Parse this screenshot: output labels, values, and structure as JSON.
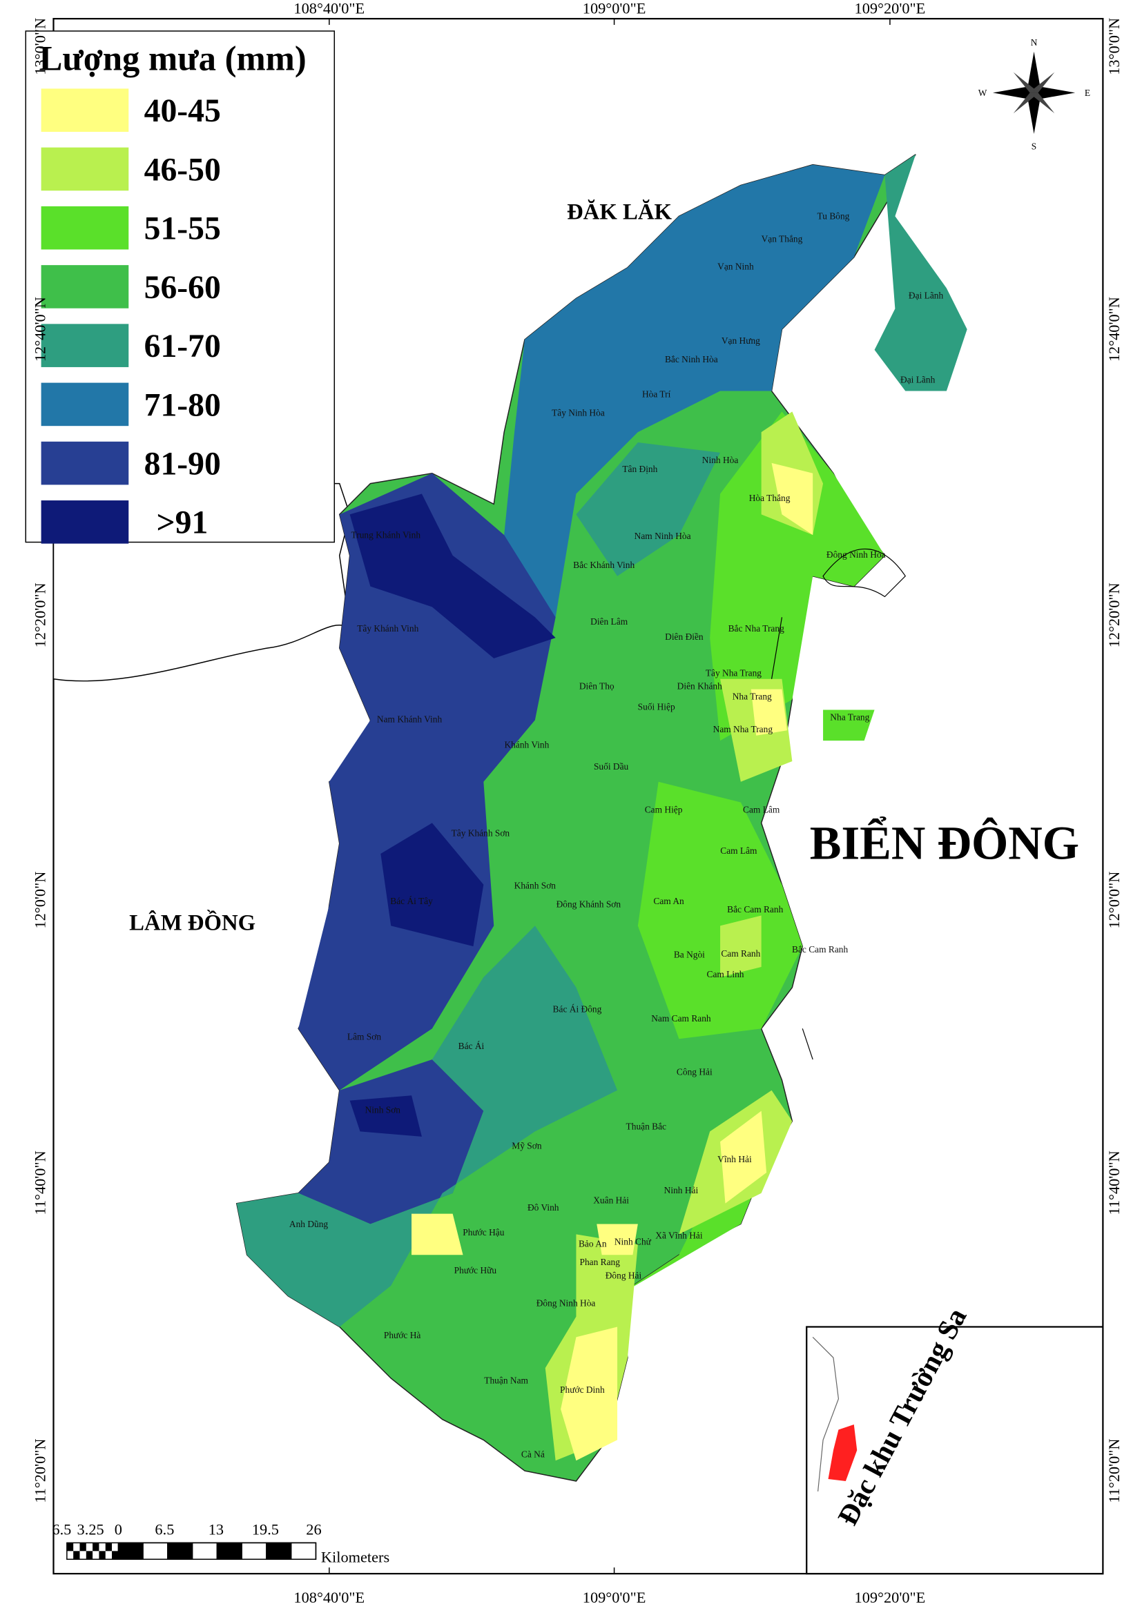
{
  "legend": {
    "title": "Lượng mưa (mm)",
    "items": [
      {
        "label": "40-45",
        "color": "#ffff80"
      },
      {
        "label": "46-50",
        "color": "#b9f04f"
      },
      {
        "label": "51-55",
        "color": "#5ae02a"
      },
      {
        "label": "56-60",
        "color": "#3fbf4a"
      },
      {
        "label": "61-70",
        "color": "#2e9e80"
      },
      {
        "label": "71-80",
        "color": "#2277a8"
      },
      {
        "label": "81-90",
        "color": "#273f93"
      },
      {
        "label": ">91",
        "color": "#0e1a78"
      }
    ]
  },
  "regions": {
    "north": "ĐĂK LĂK",
    "west": "LÂM ĐỒNG",
    "sea": "BIỂN ĐÔNG"
  },
  "communes": [
    "Tu Bông",
    "Vạn Thắng",
    "Vạn Ninh",
    "Đại Lãnh",
    "Vạn Hưng",
    "Đại Lãnh",
    "Bắc Ninh Hòa",
    "Hòa Trí",
    "Tây Ninh Hòa",
    "Tân Định",
    "Ninh Hòa",
    "Hòa Thắng",
    "Trung Khánh Vinh",
    "Nam Ninh Hòa",
    "Đông Ninh Hòa",
    "Bắc Khánh Vinh",
    "Diên Lâm",
    "Tây Khánh Vinh",
    "Diên Điền",
    "Bắc Nha Trang",
    "Tây Nha Trang",
    "Diên Khánh",
    "Diên Thọ",
    "Nha Trang",
    "Nha Trang",
    "Suối Hiệp",
    "Nam Khánh Vinh",
    "Nam Nha Trang",
    "Khánh Vinh",
    "Suối Dầu",
    "Cam Hiệp",
    "Cam Lâm",
    "Tây Khánh Sơn",
    "Cam Lâm",
    "Khánh Sơn",
    "Bác Ái Tây",
    "Đông Khánh Sơn",
    "Cam An",
    "Bắc Cam Ranh",
    "Ba Ngòi",
    "Cam Ranh",
    "Bắc Cam Ranh",
    "Cam Linh",
    "Bác Ái Đông",
    "Lâm Sơn",
    "Nam Cam Ranh",
    "Bác Ái",
    "Công Hải",
    "Ninh Sơn",
    "Thuận Bắc",
    "Mỹ Sơn",
    "Vĩnh Hải",
    "Ninh Hải",
    "Đô Vinh",
    "Xuân Hải",
    "Anh Dũng",
    "Phước Hậu",
    "Xã Vĩnh Hải",
    "Bảo An",
    "Ninh Chử",
    "Phan Rang",
    "Phước Hữu",
    "Đông Hải",
    "Đông Ninh Hòa",
    "Phước Hà",
    "Thuận Nam",
    "Phước Dinh",
    "Cà Ná"
  ],
  "coordinates": {
    "longitudes": [
      "108°40'0\"E",
      "109°0'0\"E",
      "109°20'0\"E"
    ],
    "latitudes": [
      "13°0'0\"N",
      "12°40'0\"N",
      "12°20'0\"N",
      "12°0'0\"N",
      "11°40'0\"N",
      "11°20'0\"N"
    ]
  },
  "scale_bar": {
    "ticks": [
      "6.5",
      "3.25",
      "0",
      "6.5",
      "13",
      "19.5",
      "26"
    ],
    "unit": "Kilometers"
  },
  "compass": {
    "north": "N",
    "south": "S",
    "east": "E",
    "west": "W"
  },
  "inset": {
    "title": "Đặc khu Trường Sa"
  }
}
